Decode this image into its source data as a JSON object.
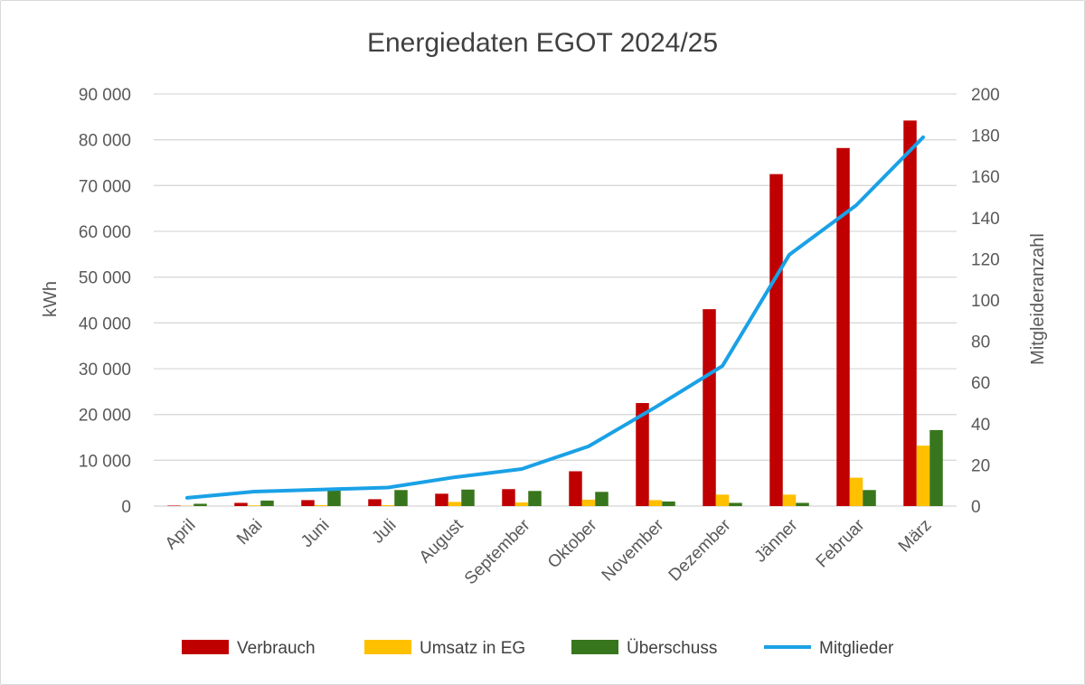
{
  "chart_data": {
    "type": "bar",
    "title": "Energiedaten EGOT 2024/25",
    "ylabel": "kWh",
    "y2label": "Mitgleideranzahl",
    "xlabel": "",
    "ylim": [
      0,
      90000
    ],
    "y2lim": [
      0,
      200
    ],
    "yticks": [
      "0",
      "10 000",
      "20 000",
      "30 000",
      "40 000",
      "50 000",
      "60 000",
      "70 000",
      "80 000",
      "90 000"
    ],
    "y2ticks": [
      "0",
      "20",
      "40",
      "60",
      "80",
      "100",
      "120",
      "140",
      "160",
      "180",
      "200"
    ],
    "grid": true,
    "legend": "bottom",
    "categories": [
      "April",
      "Mai",
      "Juni",
      "Juli",
      "August",
      "September",
      "Oktober",
      "November",
      "Dezember",
      "Jänner",
      "Februar",
      "März"
    ],
    "series": [
      {
        "name": "Verbrauch",
        "type": "bar",
        "axis": "left",
        "color": "#C00000",
        "values": [
          100,
          700,
          1300,
          1500,
          2700,
          3700,
          7600,
          22500,
          43000,
          72500,
          78200,
          84200
        ]
      },
      {
        "name": "Umsatz in EG",
        "type": "bar",
        "axis": "left",
        "color": "#FFC000",
        "values": [
          50,
          150,
          200,
          200,
          900,
          800,
          1400,
          1300,
          2500,
          2500,
          6200,
          13200
        ]
      },
      {
        "name": "Überschuss",
        "type": "bar",
        "axis": "left",
        "color": "#38761D",
        "values": [
          500,
          1200,
          3500,
          3500,
          3600,
          3300,
          3100,
          1000,
          700,
          700,
          3500,
          16600
        ]
      },
      {
        "name": "Mitglieder",
        "type": "line",
        "axis": "right",
        "color": "#1AA1E6",
        "values": [
          4,
          7,
          8,
          9,
          14,
          18,
          29,
          48,
          68,
          122,
          146,
          179
        ]
      }
    ]
  }
}
